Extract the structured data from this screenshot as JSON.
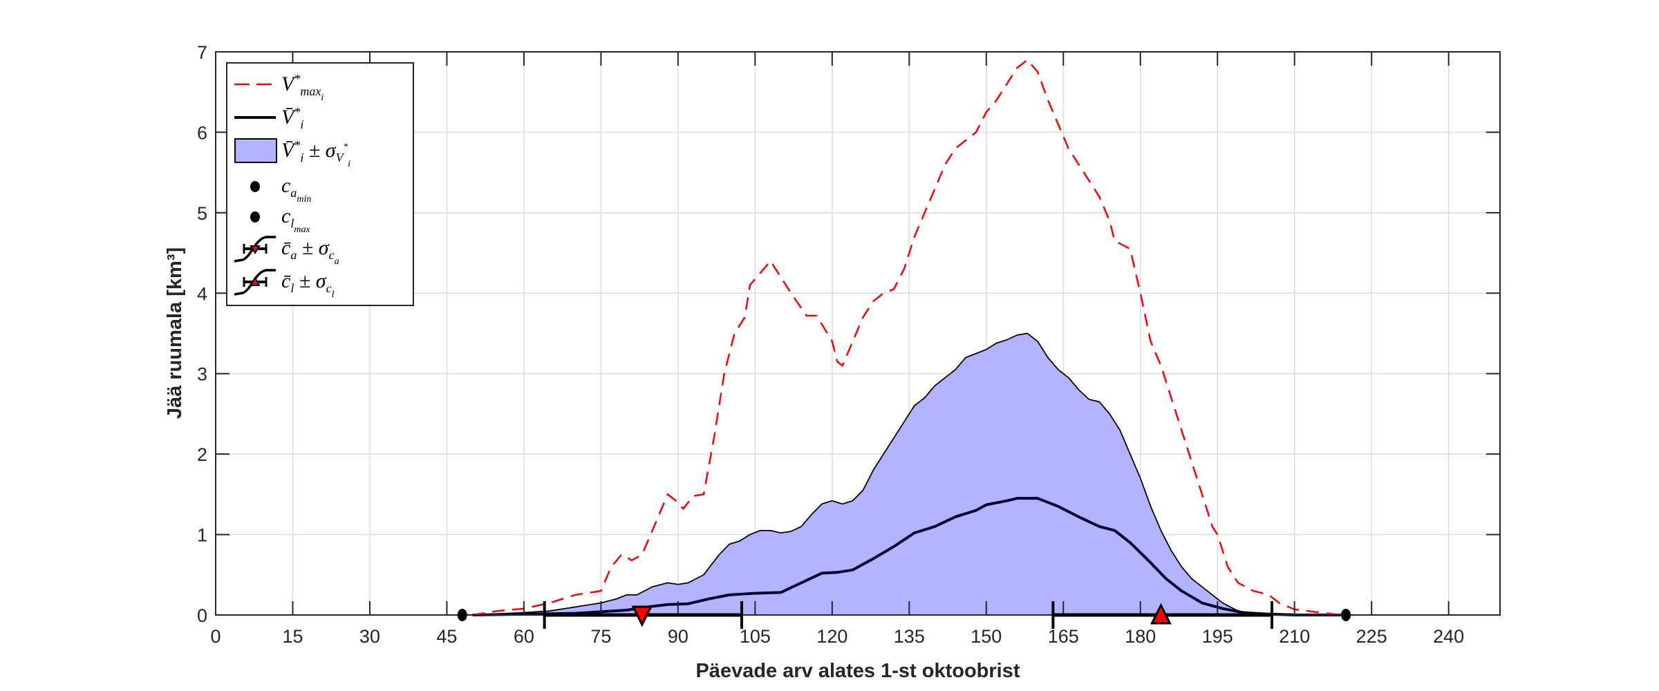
{
  "chart_data": {
    "type": "area",
    "title": "",
    "xlabel": "Päevade arv alates 1-st oktoobrist",
    "ylabel": "Jää ruumala [km³]",
    "xlim": [
      0,
      250
    ],
    "ylim": [
      0,
      7
    ],
    "xticks": [
      0,
      15,
      30,
      45,
      60,
      75,
      90,
      105,
      120,
      135,
      150,
      165,
      180,
      195,
      210,
      225,
      240
    ],
    "yticks": [
      0,
      1,
      2,
      3,
      4,
      5,
      6,
      7
    ],
    "grid": true,
    "legend_placement": "top-left",
    "colors": {
      "vmax": "#ff0000",
      "mean": "#000033",
      "band_fill": "#b3b3ff",
      "band_edge": "#000000",
      "marker": "#ff0000"
    },
    "series": [
      {
        "name": "V*max_i",
        "style": "dashed",
        "x": [
          50,
          55,
          60,
          65,
          70,
          75,
          77,
          79,
          81,
          83,
          86,
          88,
          90,
          91,
          93,
          95,
          97,
          99,
          101,
          103,
          104,
          106,
          108,
          110,
          112,
          115,
          117,
          120,
          121,
          122,
          124,
          126,
          128,
          130,
          132,
          134,
          136,
          138,
          140,
          142,
          144,
          146,
          148,
          150,
          152,
          154,
          156,
          158,
          160,
          162,
          164,
          166,
          168,
          170,
          172,
          174,
          175,
          178,
          180,
          182,
          184,
          186,
          188,
          190,
          192,
          194,
          195,
          197,
          199,
          202,
          205,
          207,
          210,
          215,
          219
        ],
        "y": [
          0,
          0.05,
          0.08,
          0.15,
          0.25,
          0.3,
          0.6,
          0.75,
          0.68,
          0.75,
          1.2,
          1.5,
          1.4,
          1.32,
          1.48,
          1.5,
          2.2,
          3.0,
          3.5,
          3.7,
          4.1,
          4.25,
          4.4,
          4.2,
          4.0,
          3.72,
          3.72,
          3.4,
          3.15,
          3.1,
          3.4,
          3.7,
          3.9,
          4.0,
          4.05,
          4.3,
          4.7,
          5.0,
          5.3,
          5.6,
          5.8,
          5.9,
          6.0,
          6.25,
          6.4,
          6.6,
          6.8,
          6.9,
          6.75,
          6.4,
          6.1,
          5.8,
          5.6,
          5.4,
          5.2,
          4.9,
          4.65,
          4.55,
          4.0,
          3.4,
          3.1,
          2.7,
          2.3,
          1.9,
          1.5,
          1.1,
          1.0,
          0.6,
          0.4,
          0.3,
          0.25,
          0.15,
          0.07,
          0.03,
          0
        ]
      },
      {
        "name": "V̄*_i",
        "style": "solid",
        "x": [
          50,
          60,
          70,
          80,
          84,
          88,
          92,
          96,
          100,
          105,
          110,
          114,
          118,
          121,
          124,
          128,
          132,
          136,
          140,
          144,
          148,
          150,
          154,
          156,
          160,
          164,
          168,
          172,
          175,
          178,
          182,
          185,
          188,
          192,
          196,
          200,
          205,
          210,
          219
        ],
        "y": [
          0,
          0.01,
          0.02,
          0.06,
          0.1,
          0.13,
          0.14,
          0.2,
          0.25,
          0.27,
          0.28,
          0.4,
          0.52,
          0.53,
          0.56,
          0.7,
          0.85,
          1.02,
          1.1,
          1.22,
          1.3,
          1.37,
          1.42,
          1.45,
          1.45,
          1.35,
          1.22,
          1.1,
          1.05,
          0.9,
          0.65,
          0.45,
          0.3,
          0.15,
          0.08,
          0.03,
          0.01,
          0,
          0
        ]
      },
      {
        "name": "V̄*_i ± σ_V*_i",
        "style": "band",
        "x": [
          50,
          60,
          65,
          70,
          75,
          78,
          80,
          82,
          85,
          88,
          90,
          92,
          95,
          98,
          100,
          102,
          104,
          106,
          108,
          110,
          112,
          114,
          116,
          118,
          120,
          122,
          124,
          126,
          128,
          130,
          132,
          134,
          136,
          138,
          140,
          142,
          144,
          146,
          148,
          150,
          152,
          154,
          156,
          158,
          160,
          162,
          164,
          166,
          168,
          170,
          172,
          174,
          176,
          178,
          180,
          182,
          184,
          186,
          188,
          190,
          193,
          196,
          199,
          201,
          205,
          210,
          219
        ],
        "upper": [
          0,
          0.03,
          0.05,
          0.1,
          0.15,
          0.2,
          0.25,
          0.25,
          0.35,
          0.4,
          0.38,
          0.4,
          0.5,
          0.75,
          0.88,
          0.92,
          1.0,
          1.05,
          1.05,
          1.02,
          1.04,
          1.1,
          1.25,
          1.38,
          1.42,
          1.38,
          1.42,
          1.55,
          1.8,
          2.0,
          2.2,
          2.4,
          2.6,
          2.7,
          2.85,
          2.95,
          3.05,
          3.2,
          3.25,
          3.3,
          3.38,
          3.42,
          3.48,
          3.5,
          3.4,
          3.2,
          3.05,
          2.95,
          2.8,
          2.68,
          2.65,
          2.5,
          2.3,
          2.0,
          1.7,
          1.35,
          1.05,
          0.8,
          0.6,
          0.45,
          0.3,
          0.15,
          0.05,
          0.03,
          0.02,
          0.01,
          0
        ],
        "lower": 0
      }
    ],
    "points": {
      "c_a_min": {
        "x": 48,
        "y": 0
      },
      "c_l_max": {
        "x": 220,
        "y": 0
      }
    },
    "errorbars": {
      "c_a": {
        "mean": 83,
        "low": 64,
        "high": 102.4,
        "marker": "triangle-down"
      },
      "c_l": {
        "mean": 184,
        "low": 163,
        "high": 205.6,
        "marker": "triangle-up"
      }
    },
    "legend": [
      {
        "base": "V",
        "sup": "*",
        "sub": "max",
        "subsub": "i"
      },
      {
        "base": "V̄",
        "sup": "*",
        "sub": "i"
      },
      {
        "base": "V̄",
        "sup": "*",
        "sub": "i",
        "rest": " ± σ",
        "rest_sub": "V",
        "rest_subsup": "*",
        "rest_subsub": "i"
      },
      {
        "base": "c",
        "sub": "a",
        "subsub": "min"
      },
      {
        "base": "c",
        "sub": "l",
        "subsub": "max"
      },
      {
        "base": "c̄",
        "sub": "a",
        "rest": " ± σ",
        "rest_sub": "c",
        "rest_subsub": "a"
      },
      {
        "base": "c̄",
        "sub": "l",
        "rest": " ± σ",
        "rest_sub": "c",
        "rest_subsub": "l"
      }
    ]
  }
}
